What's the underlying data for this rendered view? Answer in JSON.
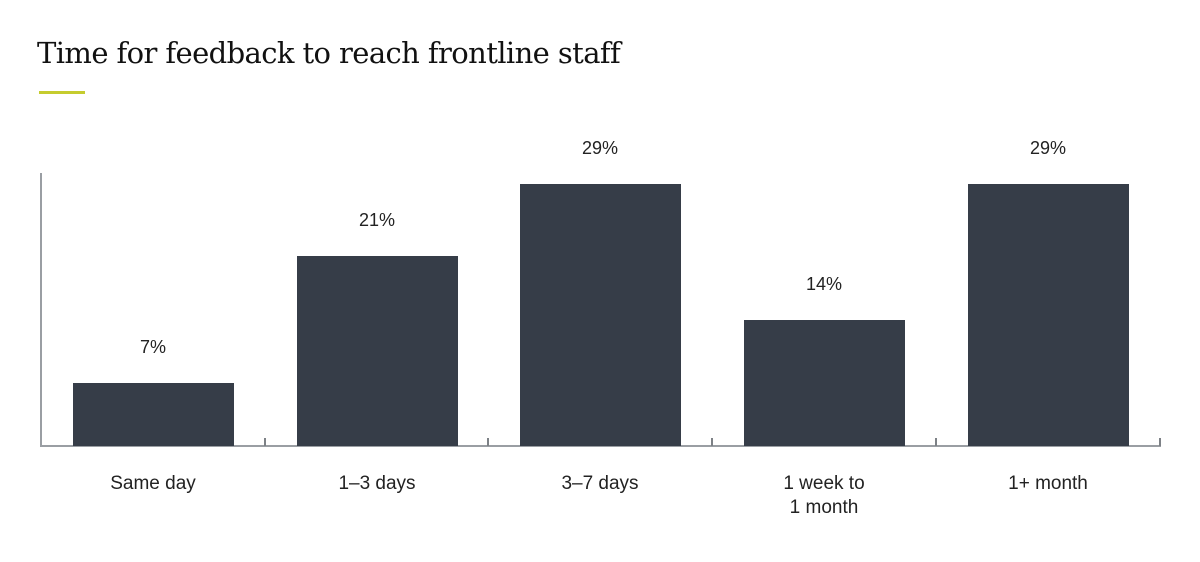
{
  "header": {
    "title": "Time for feedback to reach frontline staff",
    "accent_color": "#c5cc2f"
  },
  "chart_data": {
    "type": "bar",
    "title": "Time for feedback to reach frontline staff",
    "xlabel": "",
    "ylabel": "",
    "categories": [
      "Same day",
      "1–3 days",
      "3–7 days",
      "1 week to 1 month",
      "1+ month"
    ],
    "category_lines": [
      [
        "Same day"
      ],
      [
        "1–3 days"
      ],
      [
        "3–7 days"
      ],
      [
        "1 week to",
        "1 month"
      ],
      [
        "1+ month"
      ]
    ],
    "values": [
      7,
      21,
      29,
      14,
      29
    ],
    "value_labels": [
      "7%",
      "21%",
      "29%",
      "14%",
      "29%"
    ],
    "ylim": [
      0,
      29
    ],
    "grid": false,
    "legend": null,
    "bar_color": "#363d48"
  }
}
